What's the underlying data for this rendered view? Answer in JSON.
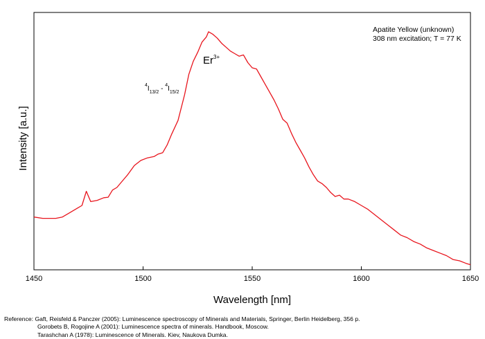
{
  "chart_data": {
    "type": "line",
    "title": "",
    "xlabel": "Wavelength [nm]",
    "ylabel": "Intensity [a.u.]",
    "xlim": [
      1450,
      1650
    ],
    "ylim": [
      0,
      100
    ],
    "xticks": [
      "1450",
      "1500",
      "1550",
      "1600",
      "1650"
    ],
    "y_tick_labels": false,
    "grid": false,
    "legend": "none",
    "series_color": "#e8141c",
    "annotations": {
      "sample": "Apatite Yellow (unknown)",
      "conditions": "308 nm excitation; T = 77 K",
      "ion": "Er",
      "ion_charge": "3+",
      "transition": {
        "upper_sup": "4",
        "upper": "I",
        "upper_sub": "13/2",
        "sep": " - ",
        "lower_sup": "4",
        "lower": "I",
        "lower_sub": "15/2"
      }
    },
    "series": [
      {
        "x": [
          1450,
          1454,
          1460,
          1463,
          1466,
          1470,
          1472,
          1474,
          1476,
          1479,
          1482,
          1484,
          1486,
          1488,
          1490,
          1493,
          1496,
          1499,
          1502,
          1505,
          1507,
          1509,
          1511,
          1513,
          1516,
          1519,
          1521,
          1523,
          1525,
          1527,
          1529,
          1530,
          1532,
          1534,
          1536,
          1538,
          1540,
          1542,
          1544,
          1546,
          1548,
          1550,
          1552,
          1554,
          1556,
          1558,
          1560,
          1562,
          1564,
          1566,
          1568,
          1570,
          1572,
          1574,
          1576,
          1578,
          1580,
          1582,
          1584,
          1586,
          1588,
          1590,
          1592,
          1594,
          1597,
          1600,
          1603,
          1606,
          1609,
          1612,
          1615,
          1618,
          1621,
          1624,
          1627,
          1630,
          1633,
          1636,
          1639,
          1642,
          1645,
          1648,
          1650
        ],
        "y": [
          20.5,
          20.0,
          20.0,
          20.5,
          22.0,
          24.0,
          25.0,
          30.5,
          26.5,
          27.0,
          28.0,
          28.2,
          31.0,
          32.0,
          34.0,
          37.0,
          40.5,
          42.5,
          43.5,
          44.0,
          45.0,
          45.5,
          48.5,
          52.5,
          58.0,
          68.0,
          76.0,
          81.0,
          84.5,
          88.5,
          90.5,
          92.5,
          91.5,
          90.0,
          88.0,
          86.5,
          85.0,
          84.0,
          83.0,
          83.5,
          80.5,
          78.5,
          78.0,
          75.0,
          72.0,
          69.0,
          66.0,
          62.5,
          58.5,
          57.0,
          53.0,
          49.5,
          46.5,
          43.5,
          40.0,
          37.0,
          34.5,
          33.5,
          32.0,
          30.0,
          28.5,
          29.0,
          27.5,
          27.5,
          26.5,
          25.0,
          23.5,
          21.5,
          19.5,
          17.5,
          15.5,
          13.5,
          12.5,
          11.0,
          10.0,
          8.5,
          7.5,
          6.5,
          5.5,
          4.0,
          3.5,
          2.5,
          2.0
        ]
      }
    ]
  },
  "references": {
    "label": "Reference:",
    "lines": [
      "Gaft, Reisfeld & Panczer (2005): Luminescence spectroscopy of Minerals and Materials, Springer, Berlin Heidelberg, 356 p.",
      "Gorobets B, Rogojine A (2001): Luminescence spectra of minerals. Handbook, Moscow.",
      "Tarashchan A (1978): Luminescence of Minerals. Kiev, Naukova Dumka."
    ]
  }
}
